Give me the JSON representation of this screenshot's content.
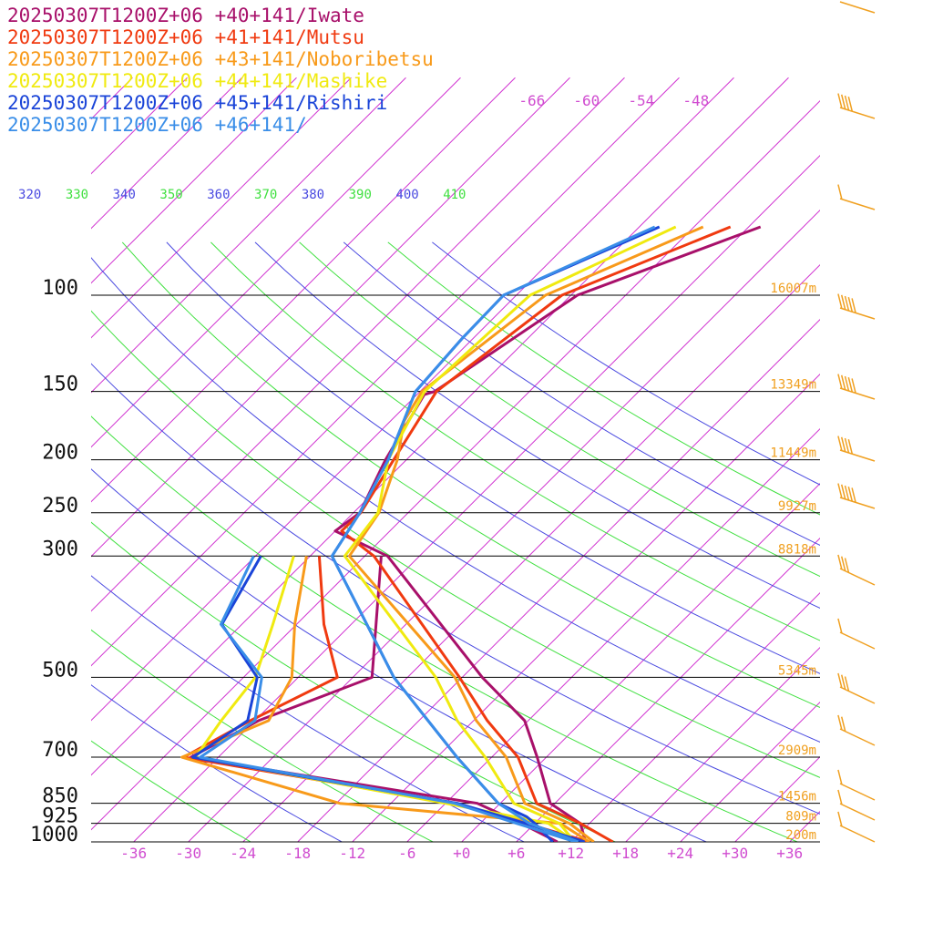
{
  "legend": [
    {
      "text": "20250307T1200Z+06 +40+141/Iwate",
      "color": "#a8106a"
    },
    {
      "text": "20250307T1200Z+06 +41+141/Mutsu",
      "color": "#f03a10"
    },
    {
      "text": "20250307T1200Z+06 +43+141/Noboribetsu",
      "color": "#f89a1a"
    },
    {
      "text": "20250307T1200Z+06 +44+141/Mashike",
      "color": "#f0ea10"
    },
    {
      "text": "20250307T1200Z+06 +45+141/Rishiri",
      "color": "#1a44d8"
    },
    {
      "text": "20250307T1200Z+06 +46+141/",
      "color": "#3a8ee8"
    }
  ],
  "chart_data": {
    "type": "line",
    "pressure_ticks": [
      "100",
      "150",
      "200",
      "250",
      "300",
      "500",
      "700",
      "850",
      "925",
      "1000"
    ],
    "pressure_values": [
      100,
      150,
      200,
      250,
      300,
      500,
      700,
      850,
      925,
      1000
    ],
    "height_labels": [
      "16007m",
      "13349m",
      "11449m",
      "9927m",
      "8818m",
      "5345m",
      "2909m",
      "1456m",
      "809m",
      "200m"
    ],
    "temp_ticks": [
      "-36",
      "-30",
      "-24",
      "-18",
      "-12",
      "-6",
      "+0",
      "+6",
      "+12",
      "+18",
      "+24",
      "+30",
      "+36"
    ],
    "temp_values": [
      -36,
      -30,
      -24,
      -18,
      -12,
      -6,
      0,
      6,
      12,
      18,
      24,
      30,
      36
    ],
    "upper_temp_labels": [
      "-66",
      "-60",
      "-54",
      "-48"
    ],
    "theta_labels": [
      "320",
      "330",
      "340",
      "350",
      "360",
      "370",
      "380",
      "390",
      "400",
      "410"
    ],
    "colors": {
      "isotherm": "#d030d0",
      "theta_blue": "#4a4ae0",
      "theta_green": "#40e040",
      "isobar": "#000000",
      "height": "#f0a020",
      "barb": "#f0a020"
    },
    "series": [
      {
        "name": "Iwate",
        "color": "#a8106a",
        "temp": [
          [
            75,
            -34.7
          ],
          [
            100,
            -47.3
          ],
          [
            150,
            -52.4
          ],
          [
            152,
            -53.2
          ],
          [
            200,
            -50.3
          ],
          [
            250,
            -47.3
          ],
          [
            270,
            -48.0
          ],
          [
            300,
            -39.5
          ],
          [
            500,
            -15.8
          ],
          [
            600,
            -6.4
          ],
          [
            700,
            -1.0
          ],
          [
            850,
            5.5
          ],
          [
            925,
            11.0
          ],
          [
            1000,
            13.6
          ]
        ],
        "dew": [
          [
            300,
            -40.2
          ],
          [
            500,
            -27.9
          ],
          [
            600,
            -35.6
          ],
          [
            700,
            -39.0
          ],
          [
            850,
            -2.5
          ],
          [
            925,
            4.5
          ],
          [
            1000,
            10.5
          ]
        ]
      },
      {
        "name": "Mutsu",
        "color": "#f03a10",
        "temp": [
          [
            75,
            -38.0
          ],
          [
            100,
            -49.0
          ],
          [
            150,
            -52.2
          ],
          [
            200,
            -49.4
          ],
          [
            250,
            -47.2
          ],
          [
            270,
            -47.3
          ],
          [
            300,
            -41.0
          ],
          [
            500,
            -18.3
          ],
          [
            600,
            -10.5
          ],
          [
            700,
            -3.1
          ],
          [
            850,
            4.0
          ],
          [
            925,
            11.0
          ],
          [
            1000,
            16.6
          ]
        ],
        "dew": [
          [
            300,
            -47.0
          ],
          [
            400,
            -39.0
          ],
          [
            500,
            -31.7
          ],
          [
            600,
            -36.5
          ],
          [
            700,
            -39.8
          ],
          [
            850,
            -4.8
          ],
          [
            925,
            5.0
          ],
          [
            1000,
            14.0
          ]
        ]
      },
      {
        "name": "Noboribetsu",
        "color": "#f89a1a",
        "temp": [
          [
            75,
            -41.0
          ],
          [
            100,
            -50.8
          ],
          [
            150,
            -53.8
          ],
          [
            170,
            -52.5
          ],
          [
            200,
            -49.0
          ],
          [
            250,
            -45.2
          ],
          [
            300,
            -43.7
          ],
          [
            500,
            -18.8
          ],
          [
            600,
            -11.7
          ],
          [
            700,
            -4.4
          ],
          [
            850,
            2.7
          ],
          [
            925,
            9.8
          ],
          [
            1000,
            14.5
          ]
        ],
        "dew": [
          [
            300,
            -48.4
          ],
          [
            400,
            -42.2
          ],
          [
            500,
            -36.7
          ],
          [
            600,
            -34.5
          ],
          [
            700,
            -40.0
          ],
          [
            850,
            -17.6
          ],
          [
            925,
            8.8
          ],
          [
            1000,
            14.0
          ]
        ]
      },
      {
        "name": "Mashike",
        "color": "#f0ea10",
        "temp": [
          [
            75,
            -44.0
          ],
          [
            100,
            -52.5
          ],
          [
            150,
            -53.5
          ],
          [
            200,
            -50.0
          ],
          [
            250,
            -45.3
          ],
          [
            300,
            -44.2
          ],
          [
            500,
            -20.9
          ],
          [
            600,
            -13.8
          ],
          [
            700,
            -6.7
          ],
          [
            850,
            1.5
          ],
          [
            925,
            8.7
          ],
          [
            1000,
            12.4
          ]
        ],
        "dew": [
          [
            300,
            -49.8
          ],
          [
            400,
            -44.6
          ],
          [
            500,
            -40.7
          ],
          [
            600,
            -39.7
          ],
          [
            700,
            -38.5
          ],
          [
            850,
            -6.0
          ],
          [
            925,
            7.5
          ],
          [
            1000,
            12.5
          ]
        ]
      },
      {
        "name": "Rishiri",
        "color": "#1a44d8",
        "temp": [
          [
            75,
            -45.8
          ],
          [
            100,
            -55.4
          ],
          [
            120,
            -55.2
          ],
          [
            150,
            -54.5
          ],
          [
            200,
            -50.0
          ],
          [
            250,
            -47.3
          ],
          [
            300,
            -45.6
          ],
          [
            500,
            -25.5
          ],
          [
            600,
            -17.0
          ],
          [
            700,
            -9.8
          ],
          [
            850,
            -0.2
          ],
          [
            900,
            4.4
          ],
          [
            925,
            6.0
          ],
          [
            1000,
            10.0
          ]
        ],
        "dew": [
          [
            300,
            -53.4
          ],
          [
            400,
            -50.2
          ],
          [
            500,
            -40.5
          ],
          [
            600,
            -36.8
          ],
          [
            700,
            -38.8
          ],
          [
            850,
            -4.7
          ],
          [
            925,
            5.0
          ],
          [
            1000,
            13.5
          ]
        ]
      },
      {
        "name": "",
        "color": "#3a8ee8",
        "temp": [
          [
            75,
            -46.3
          ],
          [
            100,
            -55.4
          ],
          [
            120,
            -55.2
          ],
          [
            150,
            -54.5
          ],
          [
            200,
            -50.0
          ],
          [
            250,
            -47.3
          ],
          [
            300,
            -45.6
          ],
          [
            500,
            -25.5
          ],
          [
            600,
            -17.0
          ],
          [
            700,
            -9.8
          ],
          [
            850,
            -0.2
          ],
          [
            900,
            3.6
          ],
          [
            925,
            5.4
          ],
          [
            1000,
            12.8
          ]
        ],
        "dew": [
          [
            300,
            -54.2
          ],
          [
            400,
            -50.3
          ],
          [
            500,
            -40.0
          ],
          [
            600,
            -36.0
          ],
          [
            700,
            -38.0
          ],
          [
            850,
            -5.0
          ],
          [
            925,
            4.0
          ],
          [
            1000,
            12.5
          ]
        ]
      }
    ]
  }
}
